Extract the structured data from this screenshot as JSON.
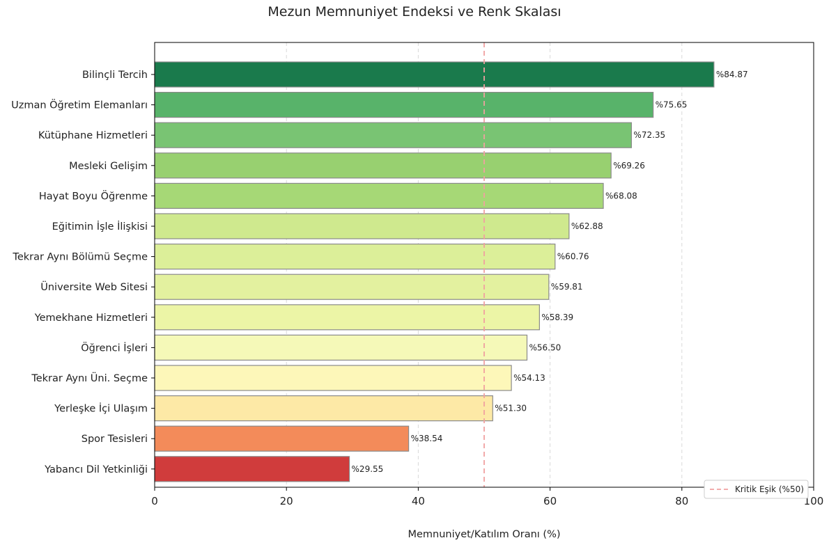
{
  "chart_data": {
    "type": "bar",
    "orientation": "horizontal",
    "title": "Mezun Memnuniyet Endeksi ve Renk Skalası",
    "xlabel": "Memnuniyet/Katılım Oranı (%)",
    "ylabel": "",
    "xlim": [
      0,
      100
    ],
    "xticks": [
      "0",
      "20",
      "40",
      "60",
      "80",
      "100"
    ],
    "xtick_values": [
      0,
      20,
      40,
      60,
      80,
      100
    ],
    "grid": "vertical dashed",
    "categories": [
      "Bilinçli Tercih",
      "Uzman Öğretim Elemanları",
      "Kütüphane Hizmetleri",
      "Mesleki Gelişim",
      "Hayat Boyu Öğrenme",
      "Eğitimin İşle İlişkisi",
      "Tekrar Aynı Bölümü Seçme",
      "Üniversite Web Sitesi",
      "Yemekhane Hizmetleri",
      "Öğrenci İşleri",
      "Tekrar Aynı Üni. Seçme",
      "Yerleşke İçi Ulaşım",
      "Spor Tesisleri",
      "Yabancı Dil Yetkinliği"
    ],
    "values": [
      84.87,
      75.65,
      72.35,
      69.26,
      68.08,
      62.88,
      60.76,
      59.81,
      58.39,
      56.5,
      54.13,
      51.3,
      38.54,
      29.55
    ],
    "value_labels": [
      "%84.87",
      "%75.65",
      "%72.35",
      "%69.26",
      "%68.08",
      "%62.88",
      "%60.76",
      "%59.81",
      "%58.39",
      "%56.50",
      "%54.13",
      "%51.30",
      "%38.54",
      "%29.55"
    ],
    "colors": [
      "#1a7a4c",
      "#58b36a",
      "#79c473",
      "#98d070",
      "#a6d876",
      "#cfe98e",
      "#dcef99",
      "#e3f19f",
      "#ecf5a6",
      "#f5f9b8",
      "#fdf7b9",
      "#fde9a6",
      "#f38b5a",
      "#d03c3c"
    ],
    "threshold": {
      "value": 50,
      "label": "Kritik Eşik (%50)",
      "color": "#f0a0a0"
    },
    "legend_position": "bottom-right"
  }
}
